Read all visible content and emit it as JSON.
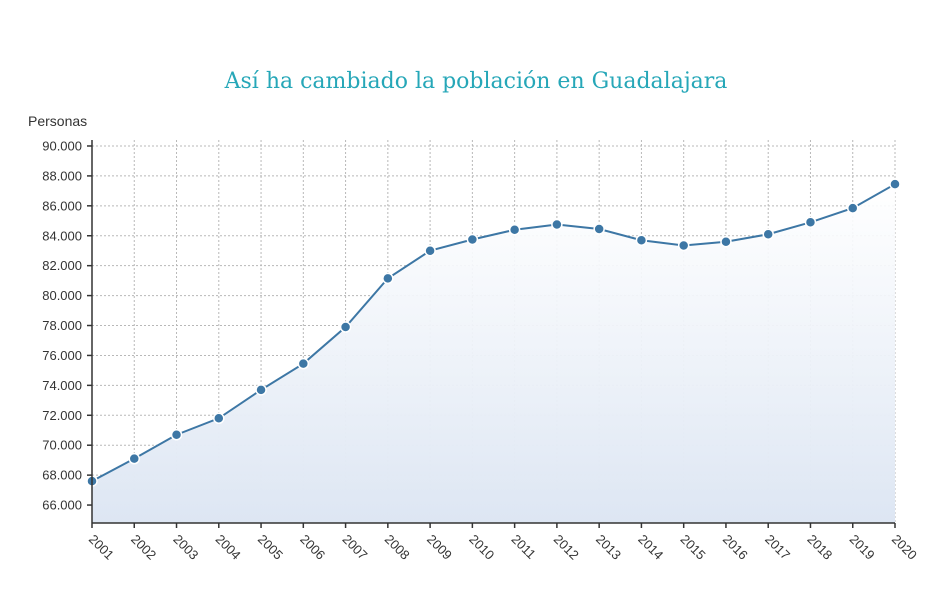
{
  "chart_data": {
    "type": "line",
    "title": "Así ha cambiado la población en Guadalajara",
    "ylabel": "Personas",
    "xlabel": "",
    "x": [
      "2001",
      "2002",
      "2003",
      "2004",
      "2005",
      "2006",
      "2007",
      "2008",
      "2009",
      "2010",
      "2011",
      "2012",
      "2013",
      "2014",
      "2015",
      "2016",
      "2017",
      "2018",
      "2019",
      "2020"
    ],
    "series": [
      {
        "values": [
          67600,
          69100,
          70700,
          71800,
          73700,
          75450,
          77900,
          81150,
          83000,
          83750,
          84400,
          84750,
          84450,
          83700,
          83350,
          83600,
          84100,
          84900,
          85850,
          87450
        ]
      }
    ],
    "yticks": [
      "66.000",
      "68.000",
      "70.000",
      "72.000",
      "74.000",
      "76.000",
      "78.000",
      "80.000",
      "82.000",
      "84.000",
      "86.000",
      "88.000",
      "90.000"
    ],
    "ylim": [
      64800,
      90400
    ],
    "grid": true,
    "area_fill": true,
    "colors": {
      "line": "#3d77a5",
      "point": "#3d77a5",
      "area": "#dde6f3",
      "title": "#26a7b8"
    }
  }
}
